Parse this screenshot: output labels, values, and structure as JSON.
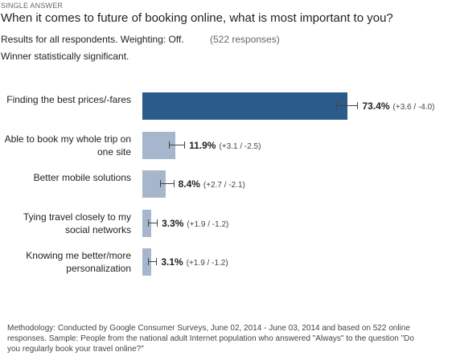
{
  "chart_data": {
    "type": "bar",
    "orientation": "horizontal",
    "kicker": "SINGLE ANSWER",
    "title": "When it comes to future of booking online, what is most important to you?",
    "subtitle": "Results for all respondents. Weighting: Off.",
    "responses": "(522 responses)",
    "significance": "Winner statistically significant.",
    "categories": [
      "Finding the best prices/-fares",
      "Able to book my whole trip on one site",
      "Better mobile solutions",
      "Tying travel closely to my social networks",
      "Knowing me better/more personalization"
    ],
    "values": [
      73.4,
      11.9,
      8.4,
      3.3,
      3.1
    ],
    "value_labels": [
      "73.4%",
      "11.9%",
      "8.4%",
      "3.3%",
      "3.1%"
    ],
    "errors_plus": [
      3.6,
      3.1,
      2.7,
      1.9,
      1.9
    ],
    "errors_minus": [
      4.0,
      2.5,
      2.1,
      1.2,
      1.2
    ],
    "error_labels": [
      "(+3.6 / -4.0)",
      "(+3.1 / -2.5)",
      "(+2.7 / -2.1)",
      "(+1.9 / -1.2)",
      "(+1.9 / -1.2)"
    ],
    "colors": [
      "#2b5b8b",
      "#a6b6cd",
      "#a6b6cd",
      "#a6b6cd",
      "#a6b6cd"
    ],
    "footnote": "Methodology: Conducted by Google Consumer Surveys, June 02, 2014 - June 03, 2014 and based on 522 online responses. Sample: People from the national adult Internet population who answered \"Always\" to the question \"Do you regularly book your travel online?\""
  }
}
